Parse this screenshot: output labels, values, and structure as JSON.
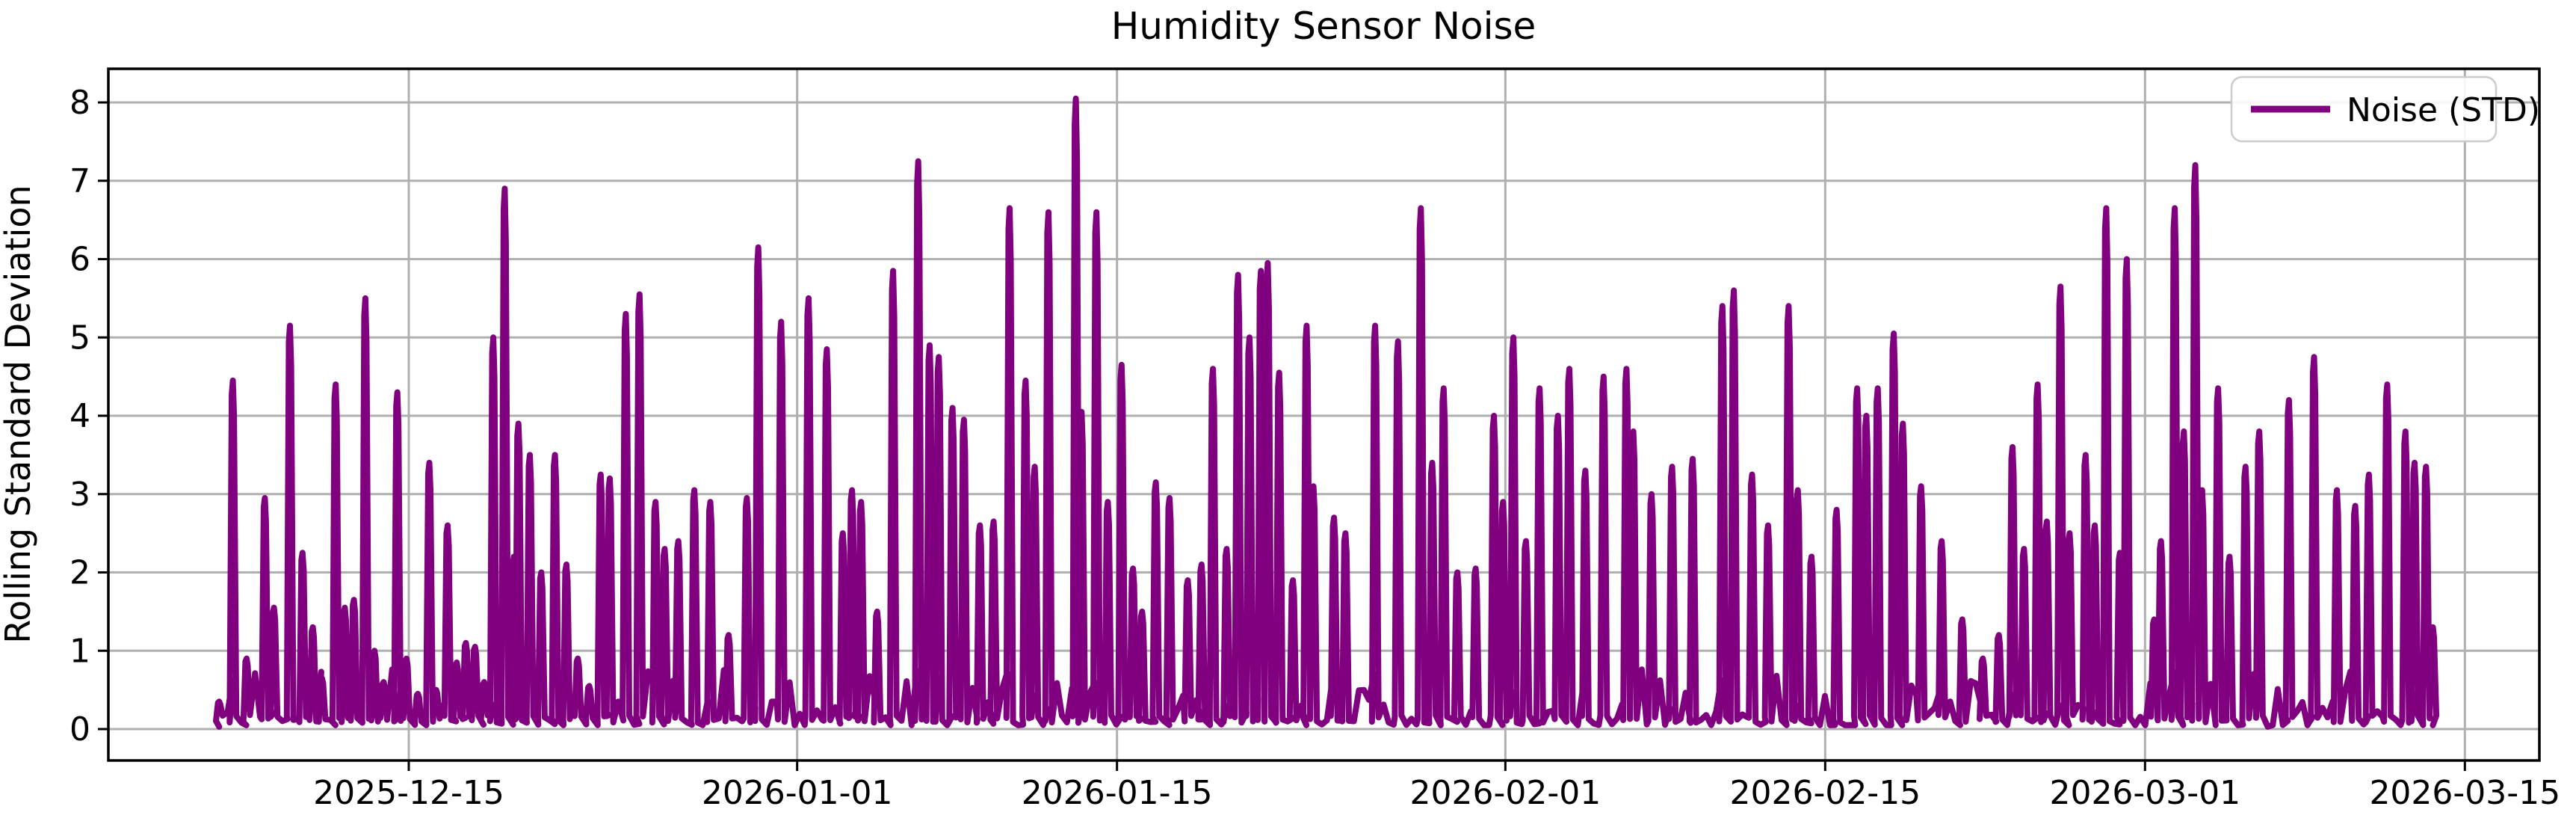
{
  "figure": {
    "title": "Humidity Sensor Noise",
    "background_color": "#ffffff"
  },
  "axes": {
    "ylabel": "Rolling Standard Deviation",
    "yticks": [
      0,
      1,
      2,
      3,
      4,
      5,
      6,
      7,
      8
    ],
    "xticks": [
      {
        "day": 0,
        "label": "2025-12-15"
      },
      {
        "day": 17,
        "label": "2026-01-01"
      },
      {
        "day": 31,
        "label": "2026-01-15"
      },
      {
        "day": 48,
        "label": "2026-02-01"
      },
      {
        "day": 62,
        "label": "2026-02-15"
      },
      {
        "day": 76,
        "label": "2026-03-01"
      },
      {
        "day": 90,
        "label": "2026-03-15"
      }
    ],
    "grid_color": "#b0b0b0",
    "spine_color": "#000000",
    "grid_on": true
  },
  "legend": {
    "label": "Noise (STD)",
    "position": "upper right",
    "line_color": "#800080",
    "border_color": "#cccccc"
  },
  "chart_data": {
    "type": "line",
    "title": "Humidity Sensor Noise",
    "xlabel": "",
    "ylabel": "Rolling Standard Deviation",
    "series_name": "Noise (STD)",
    "color": "#800080",
    "x_unit": "days since 2025-12-15",
    "x_start_day": -8.3,
    "x_end_day": 88.6,
    "xlim_days": [
      -13.15,
      93.3
    ],
    "ylim": [
      -0.401,
      8.43
    ],
    "baseline": {
      "level": 0.05,
      "jitter_max": 0.45,
      "step_days": 0.22
    },
    "spikes": [
      [
        -8.3,
        0.35
      ],
      [
        -7.7,
        4.45
      ],
      [
        -7.1,
        0.9
      ],
      [
        -6.3,
        2.95
      ],
      [
        -5.9,
        1.55
      ],
      [
        -5.2,
        5.15
      ],
      [
        -4.65,
        2.25
      ],
      [
        -4.2,
        1.3
      ],
      [
        -3.8,
        0.65
      ],
      [
        -3.2,
        4.4
      ],
      [
        -2.8,
        1.55
      ],
      [
        -2.4,
        1.65
      ],
      [
        -1.9,
        5.5
      ],
      [
        -1.5,
        1.0
      ],
      [
        -1.1,
        0.6
      ],
      [
        -0.5,
        4.3
      ],
      [
        -0.1,
        0.9
      ],
      [
        0.4,
        0.45
      ],
      [
        0.9,
        3.4
      ],
      [
        1.2,
        0.5
      ],
      [
        1.7,
        2.6
      ],
      [
        2.1,
        0.85
      ],
      [
        2.5,
        1.1
      ],
      [
        2.9,
        1.05
      ],
      [
        3.3,
        0.6
      ],
      [
        3.7,
        5.0
      ],
      [
        4.2,
        6.9
      ],
      [
        4.6,
        2.2
      ],
      [
        4.8,
        3.9
      ],
      [
        5.3,
        3.5
      ],
      [
        5.8,
        2.0
      ],
      [
        6.4,
        3.5
      ],
      [
        6.9,
        2.1
      ],
      [
        7.4,
        0.9
      ],
      [
        7.9,
        0.55
      ],
      [
        8.4,
        3.25
      ],
      [
        8.8,
        3.2
      ],
      [
        9.5,
        5.3
      ],
      [
        10.1,
        5.55
      ],
      [
        10.8,
        2.9
      ],
      [
        11.2,
        2.3
      ],
      [
        11.8,
        2.4
      ],
      [
        12.5,
        3.05
      ],
      [
        13.2,
        2.9
      ],
      [
        14.0,
        1.2
      ],
      [
        14.8,
        2.95
      ],
      [
        15.3,
        6.15
      ],
      [
        16.3,
        5.2
      ],
      [
        17.5,
        5.5
      ],
      [
        18.3,
        4.85
      ],
      [
        19.0,
        2.5
      ],
      [
        19.4,
        3.05
      ],
      [
        19.8,
        2.9
      ],
      [
        20.5,
        1.5
      ],
      [
        21.2,
        5.85
      ],
      [
        22.3,
        7.25
      ],
      [
        22.8,
        4.9
      ],
      [
        23.2,
        4.75
      ],
      [
        23.8,
        4.1
      ],
      [
        24.3,
        3.95
      ],
      [
        25.0,
        2.6
      ],
      [
        25.6,
        2.65
      ],
      [
        26.3,
        6.65
      ],
      [
        27.0,
        4.45
      ],
      [
        27.4,
        3.35
      ],
      [
        28.0,
        6.6
      ],
      [
        29.2,
        8.05
      ],
      [
        29.45,
        4.05
      ],
      [
        30.1,
        6.6
      ],
      [
        30.6,
        2.9
      ],
      [
        31.2,
        4.65
      ],
      [
        31.7,
        2.05
      ],
      [
        32.1,
        1.5
      ],
      [
        32.7,
        3.15
      ],
      [
        33.3,
        2.95
      ],
      [
        34.1,
        1.9
      ],
      [
        34.7,
        2.1
      ],
      [
        35.2,
        4.6
      ],
      [
        35.8,
        2.3
      ],
      [
        36.3,
        5.8
      ],
      [
        36.8,
        5.0
      ],
      [
        37.3,
        5.85
      ],
      [
        37.6,
        5.95
      ],
      [
        38.1,
        4.55
      ],
      [
        38.7,
        1.9
      ],
      [
        39.3,
        5.15
      ],
      [
        39.6,
        3.1
      ],
      [
        40.5,
        2.7
      ],
      [
        41.0,
        2.5
      ],
      [
        42.3,
        5.15
      ],
      [
        43.3,
        4.95
      ],
      [
        44.3,
        6.65
      ],
      [
        44.8,
        3.4
      ],
      [
        45.3,
        4.35
      ],
      [
        45.9,
        2.0
      ],
      [
        46.7,
        2.05
      ],
      [
        47.5,
        4.0
      ],
      [
        47.9,
        2.9
      ],
      [
        48.35,
        5.0
      ],
      [
        48.9,
        2.4
      ],
      [
        49.5,
        4.35
      ],
      [
        50.3,
        4.0
      ],
      [
        50.8,
        4.6
      ],
      [
        51.5,
        3.3
      ],
      [
        52.3,
        4.5
      ],
      [
        53.3,
        4.6
      ],
      [
        53.6,
        3.8
      ],
      [
        54.4,
        3.0
      ],
      [
        55.3,
        3.35
      ],
      [
        56.2,
        3.45
      ],
      [
        57.5,
        5.4
      ],
      [
        58.0,
        5.6
      ],
      [
        58.8,
        3.25
      ],
      [
        59.5,
        2.6
      ],
      [
        60.4,
        5.4
      ],
      [
        60.8,
        3.05
      ],
      [
        61.4,
        2.2
      ],
      [
        62.5,
        2.8
      ],
      [
        63.4,
        4.35
      ],
      [
        63.8,
        4.0
      ],
      [
        64.3,
        4.35
      ],
      [
        65.0,
        5.05
      ],
      [
        65.4,
        3.9
      ],
      [
        66.2,
        3.1
      ],
      [
        67.1,
        2.4
      ],
      [
        68.0,
        1.4
      ],
      [
        68.9,
        0.9
      ],
      [
        69.6,
        1.2
      ],
      [
        70.2,
        3.6
      ],
      [
        70.7,
        2.3
      ],
      [
        71.3,
        4.4
      ],
      [
        71.7,
        2.65
      ],
      [
        72.3,
        5.65
      ],
      [
        72.7,
        2.5
      ],
      [
        73.4,
        3.5
      ],
      [
        73.8,
        2.6
      ],
      [
        74.3,
        6.65
      ],
      [
        74.9,
        2.25
      ],
      [
        75.2,
        6.0
      ],
      [
        76.4,
        1.4
      ],
      [
        76.7,
        2.4
      ],
      [
        77.3,
        6.65
      ],
      [
        77.7,
        3.8
      ],
      [
        78.2,
        7.2
      ],
      [
        78.5,
        3.05
      ],
      [
        79.2,
        4.35
      ],
      [
        79.7,
        2.2
      ],
      [
        80.4,
        3.35
      ],
      [
        81.0,
        3.8
      ],
      [
        82.3,
        4.2
      ],
      [
        83.4,
        4.75
      ],
      [
        84.4,
        3.05
      ],
      [
        85.2,
        2.85
      ],
      [
        85.8,
        3.25
      ],
      [
        86.6,
        4.4
      ],
      [
        87.4,
        3.8
      ],
      [
        87.8,
        3.4
      ],
      [
        88.3,
        3.35
      ],
      [
        88.6,
        1.3
      ]
    ]
  }
}
